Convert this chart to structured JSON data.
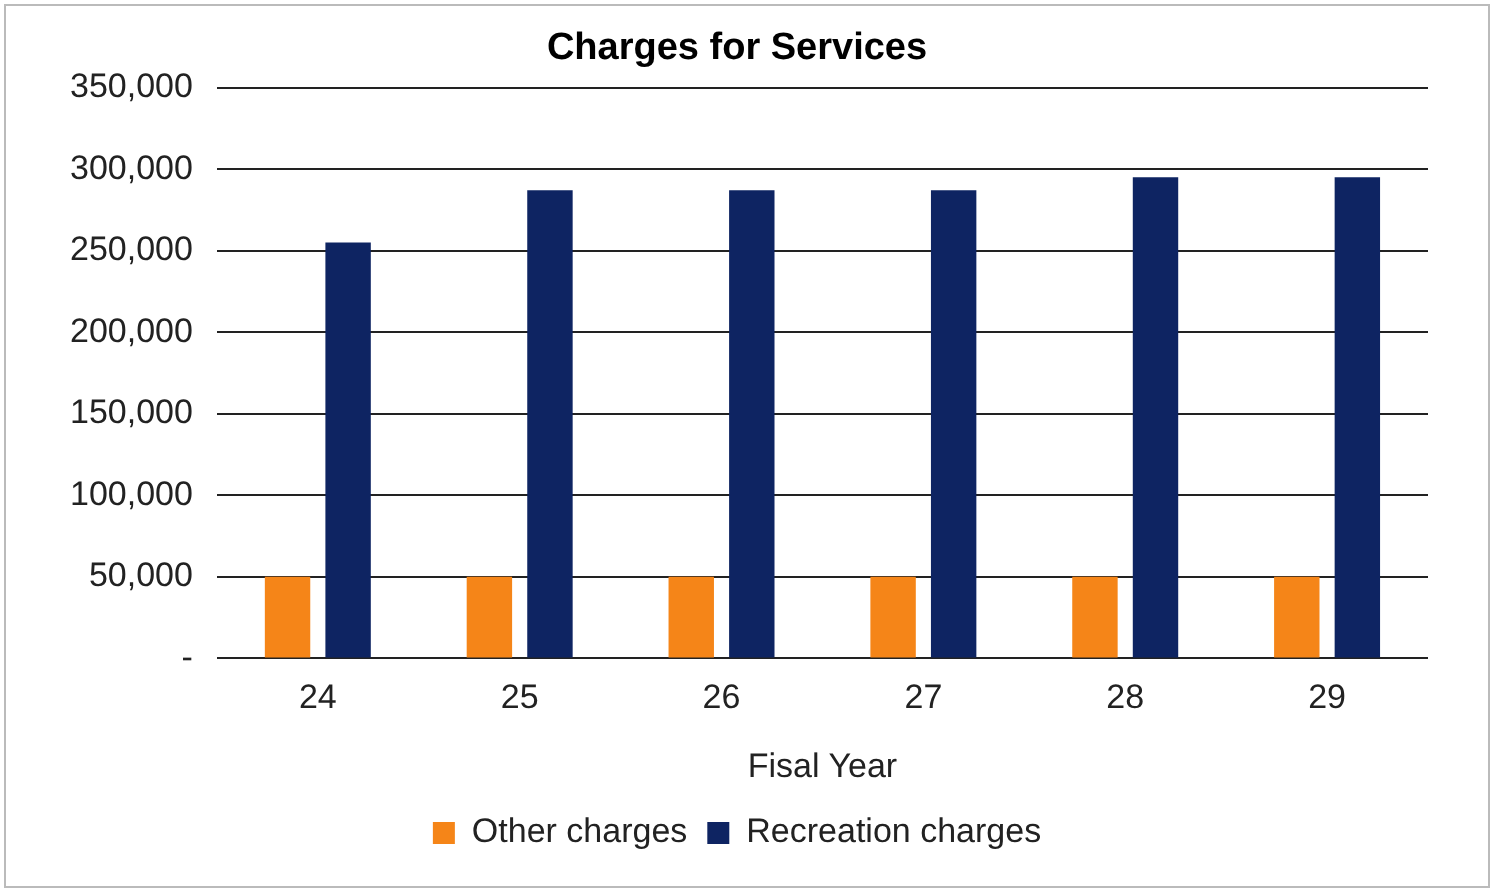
{
  "chart_data": {
    "type": "bar",
    "title": "Charges for Services",
    "xlabel": "Fisal Year",
    "categories": [
      "24",
      "25",
      "26",
      "27",
      "28",
      "29"
    ],
    "series": [
      {
        "name": "Other charges",
        "color": "#f58518",
        "values": [
          50000,
          50000,
          50000,
          50000,
          50000,
          50000
        ]
      },
      {
        "name": "Recreation charges",
        "color": "#0e2462",
        "values": [
          255000,
          287000,
          287000,
          287000,
          295000,
          295000
        ]
      }
    ],
    "ylim": [
      0,
      350000
    ],
    "yticks": [
      {
        "value": 0,
        "label": "-"
      },
      {
        "value": 50000,
        "label": "50,000"
      },
      {
        "value": 100000,
        "label": "100,000"
      },
      {
        "value": 150000,
        "label": "150,000"
      },
      {
        "value": 200000,
        "label": "200,000"
      },
      {
        "value": 250000,
        "label": "250,000"
      },
      {
        "value": 300000,
        "label": "300,000"
      },
      {
        "value": 350000,
        "label": "350,000"
      }
    ],
    "grid": "y",
    "legend": "bottom"
  }
}
